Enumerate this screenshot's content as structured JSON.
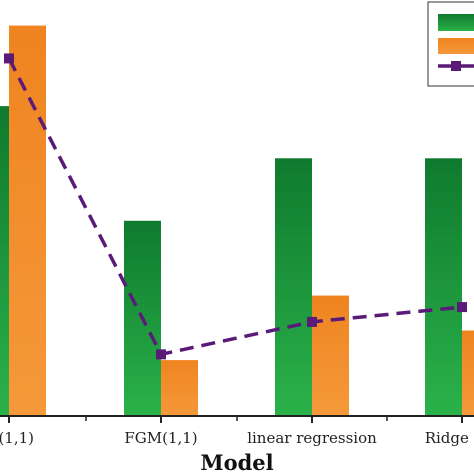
{
  "chart_data": {
    "type": "bar",
    "xlabel": "Model",
    "categories": [
      "(1,1)",
      "FGM(1,1)",
      "linear regression",
      "Ridge reg"
    ],
    "series": [
      {
        "kind": "bar",
        "color_top": "#0f7a2e",
        "color_bottom": "#2bb24a",
        "values": [
          0.754,
          0.475,
          0.627,
          0.627
        ]
      },
      {
        "kind": "bar",
        "color_top": "#f08a24",
        "color_bottom": "#f5993a",
        "values": [
          0.95,
          0.136,
          0.293,
          0.208
        ]
      },
      {
        "kind": "line",
        "color": "#5a1a78",
        "dash": true,
        "marker": "square",
        "values": [
          0.87,
          0.15,
          0.229,
          0.265
        ]
      }
    ],
    "ylim": [
      0,
      1
    ],
    "legend": {
      "placement": "top-right",
      "entries": [
        "",
        "",
        ""
      ]
    },
    "grid": false
  }
}
